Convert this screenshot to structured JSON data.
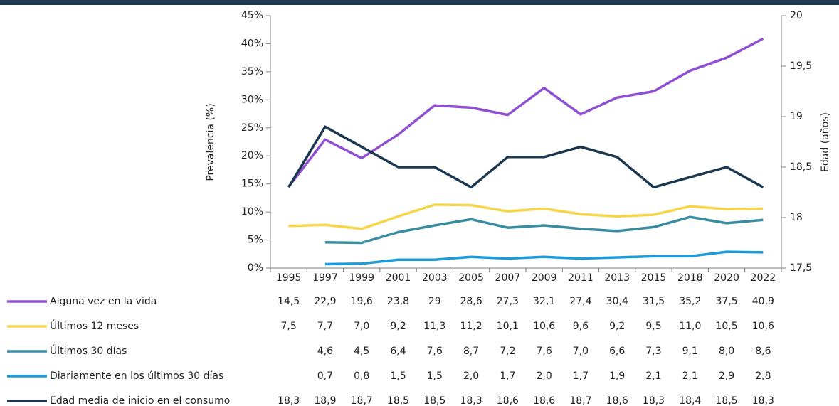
{
  "chart_data": {
    "type": "line",
    "categories": [
      "1995",
      "1997",
      "1999",
      "2001",
      "2003",
      "2005",
      "2007",
      "2009",
      "2011",
      "2013",
      "2015",
      "2018",
      "2020",
      "2022"
    ],
    "ylabel": "Prevalencia (%)",
    "y2label": "Edad (años)",
    "ylim": [
      0,
      45
    ],
    "yticks": [
      {
        "value": 0,
        "label": "0%"
      },
      {
        "value": 5,
        "label": "5%"
      },
      {
        "value": 10,
        "label": "10%"
      },
      {
        "value": 15,
        "label": "15%"
      },
      {
        "value": 20,
        "label": "20%"
      },
      {
        "value": 25,
        "label": "25%"
      },
      {
        "value": 30,
        "label": "30%"
      },
      {
        "value": 35,
        "label": "35%"
      },
      {
        "value": 40,
        "label": "40%"
      },
      {
        "value": 45,
        "label": "45%"
      }
    ],
    "y2lim": [
      17.5,
      20
    ],
    "y2ticks": [
      {
        "value": 17.5,
        "label": "17,5"
      },
      18,
      {
        "value": 18.5,
        "label": "18,5"
      },
      19,
      {
        "value": 19.5,
        "label": "19,5"
      },
      20
    ],
    "series": [
      {
        "name": "Alguna vez en la vida",
        "color": "#8f4fd1",
        "values": [
          14.5,
          22.9,
          19.6,
          23.8,
          29,
          28.6,
          27.3,
          32.1,
          27.4,
          30.4,
          31.5,
          35.2,
          37.5,
          40.9
        ],
        "value_labels": [
          "14,5",
          "22,9",
          "19,6",
          "23,8",
          "29",
          "28,6",
          "27,3",
          "32,1",
          "27,4",
          "30,4",
          "31,5",
          "35,2",
          "37,5",
          "40,9"
        ]
      },
      {
        "name": "Últimos 12 meses",
        "color": "#f7d548",
        "values": [
          7.5,
          7.7,
          7.0,
          9.2,
          11.3,
          11.2,
          10.1,
          10.6,
          9.6,
          9.2,
          9.5,
          11.0,
          10.5,
          10.6
        ],
        "value_labels": [
          "7,5",
          "7,7",
          "7,0",
          "9,2",
          "11,3",
          "11,2",
          "10,1",
          "10,6",
          "9,6",
          "9,2",
          "9,5",
          "11,0",
          "10,5",
          "10,6"
        ]
      },
      {
        "name": "Últimos 30 días",
        "color": "#3a8ca0",
        "values": [
          null,
          4.6,
          4.5,
          6.4,
          7.6,
          8.7,
          7.2,
          7.6,
          7.0,
          6.6,
          7.3,
          9.1,
          8.0,
          8.6
        ],
        "value_labels": [
          null,
          "4,6",
          "4,5",
          "6,4",
          "7,6",
          "8,7",
          "7,2",
          "7,6",
          "7,0",
          "6,6",
          "7,3",
          "9,1",
          "8,0",
          "8,6"
        ]
      },
      {
        "name": "Diariamente en los últimos 30 días",
        "color": "#1d9ad8",
        "values": [
          null,
          0.7,
          0.8,
          1.5,
          1.5,
          2.0,
          1.7,
          2.0,
          1.7,
          1.9,
          2.1,
          2.1,
          2.9,
          2.8
        ],
        "value_labels": [
          null,
          "0,7",
          "0,8",
          "1,5",
          "1,5",
          "2,0",
          "1,7",
          "2,0",
          "1,7",
          "1,9",
          "2,1",
          "2,1",
          "2,9",
          "2,8"
        ]
      },
      {
        "name": "Edad media de inicio en el consumo",
        "color": "#1b3850",
        "axis": "y2",
        "values": [
          18.3,
          18.9,
          18.7,
          18.5,
          18.5,
          18.3,
          18.6,
          18.6,
          18.7,
          18.6,
          18.3,
          18.4,
          18.5,
          18.3
        ],
        "value_labels": [
          "18,3",
          "18,9",
          "18,7",
          "18,5",
          "18,5",
          "18,3",
          "18,6",
          "18,6",
          "18,7",
          "18,6",
          "18,3",
          "18,4",
          "18,5",
          "18,3"
        ]
      }
    ]
  }
}
